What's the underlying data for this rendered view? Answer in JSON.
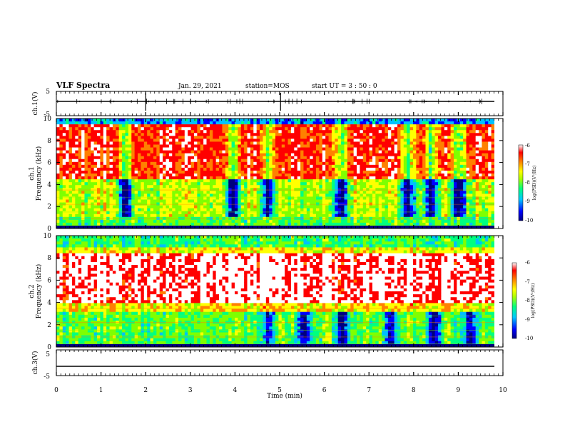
{
  "header": {
    "title": "VLF Spectra",
    "date": "Jan. 29, 2021",
    "station": "station=MOS",
    "start": "start UT =  3 : 50 : 0"
  },
  "chart_data": [
    {
      "type": "line",
      "panel": "channel 1 waveform",
      "ylabel": "ch.1(V)",
      "ylim": [
        -5,
        5
      ],
      "yticks": [
        "5",
        "-5"
      ],
      "x": [
        0,
        10
      ],
      "values": [
        -0.5,
        -0.5
      ],
      "grid": false
    },
    {
      "type": "heatmap",
      "panel": "channel 1 spectrogram",
      "ylabel": "ch.1 Frequency (kHz)",
      "ylim": [
        0,
        10
      ],
      "yticks": [
        "0",
        "2",
        "4",
        "6",
        "8",
        "10"
      ],
      "xlim": [
        0,
        10
      ],
      "z_range": [
        -10,
        -6
      ],
      "colorbar_label": "log(PSD)(V²/Hz)",
      "colorbar_ticks": [
        "-6",
        "-7",
        "-8",
        "-9",
        "-10"
      ],
      "colormap": [
        "#00007f",
        "#0000ff",
        "#00c0ff",
        "#00ff80",
        "#7fff00",
        "#ffff00",
        "#ff8000",
        "#ff0000",
        "#ffffff"
      ],
      "dark_dips_min": [
        1.55,
        4.0,
        4.8,
        6.45,
        8.0,
        8.5,
        9.15
      ],
      "description_note": ""
    },
    {
      "type": "heatmap",
      "panel": "channel 2 spectrogram",
      "ylabel": "ch.2 Frequency (kHz)",
      "ylim": [
        0,
        10
      ],
      "yticks": [
        "0",
        "2",
        "4",
        "6",
        "8",
        "10"
      ],
      "xlim": [
        0,
        10
      ],
      "z_range": [
        -10,
        -6
      ],
      "colorbar_label": "log(PSD)(V²/Hz)",
      "colorbar_ticks": [
        "-6",
        "-7",
        "-8",
        "-9",
        "-10"
      ]
    },
    {
      "type": "line",
      "panel": "channel 3 waveform",
      "ylabel": "ch.3(V)",
      "ylim": [
        -5,
        5
      ],
      "yticks": [
        "5",
        "-5"
      ],
      "x": [
        0,
        10
      ],
      "values": [
        -1.5,
        -1.5
      ],
      "grid": false
    }
  ],
  "xaxis": {
    "label": "Time (min)",
    "ticks": [
      "0",
      "1",
      "2",
      "3",
      "4",
      "5",
      "6",
      "7",
      "8",
      "9",
      "10"
    ]
  }
}
